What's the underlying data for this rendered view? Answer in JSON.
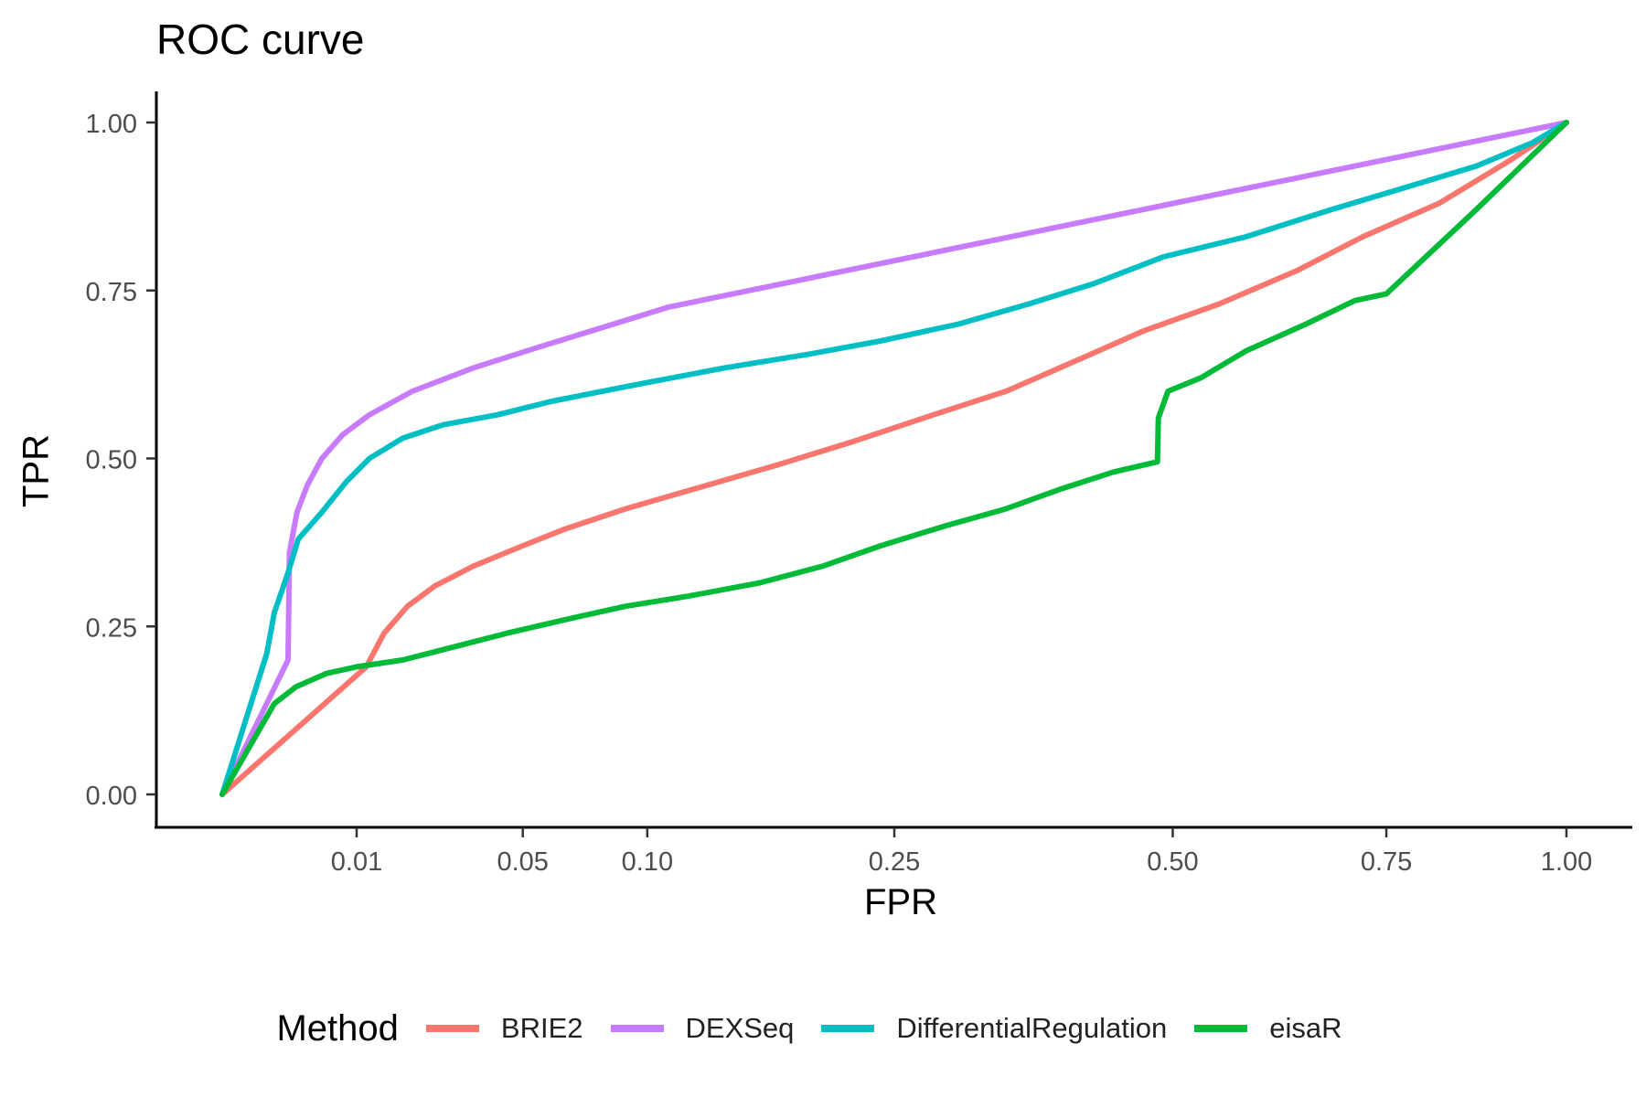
{
  "chart_data": {
    "type": "line",
    "title": "ROC curve",
    "xlabel": "FPR",
    "ylabel": "TPR",
    "x_scale": "sqrt",
    "xlim": [
      0,
      1
    ],
    "ylim": [
      0,
      1
    ],
    "x_ticks": [
      {
        "value": 0.01,
        "label": "0.01"
      },
      {
        "value": 0.05,
        "label": "0.05"
      },
      {
        "value": 0.1,
        "label": "0.10"
      },
      {
        "value": 0.25,
        "label": "0.25"
      },
      {
        "value": 0.5,
        "label": "0.50"
      },
      {
        "value": 0.75,
        "label": "0.75"
      },
      {
        "value": 1.0,
        "label": "1.00"
      }
    ],
    "y_ticks": [
      {
        "value": 0.0,
        "label": "0.00"
      },
      {
        "value": 0.25,
        "label": "0.25"
      },
      {
        "value": 0.5,
        "label": "0.50"
      },
      {
        "value": 0.75,
        "label": "0.75"
      },
      {
        "value": 1.0,
        "label": "1.00"
      }
    ],
    "grid": false,
    "legend_title": "Method",
    "legend_position": "bottom",
    "series": [
      {
        "name": "BRIE2",
        "color": "#F8766D",
        "points": [
          [
            0,
            0
          ],
          [
            0.0115,
            0.19
          ],
          [
            0.0145,
            0.24
          ],
          [
            0.019,
            0.28
          ],
          [
            0.025,
            0.31
          ],
          [
            0.035,
            0.34
          ],
          [
            0.05,
            0.37
          ],
          [
            0.065,
            0.395
          ],
          [
            0.09,
            0.425
          ],
          [
            0.13,
            0.46
          ],
          [
            0.17,
            0.49
          ],
          [
            0.22,
            0.525
          ],
          [
            0.28,
            0.565
          ],
          [
            0.34,
            0.6
          ],
          [
            0.41,
            0.65
          ],
          [
            0.47,
            0.69
          ],
          [
            0.55,
            0.73
          ],
          [
            0.64,
            0.78
          ],
          [
            0.72,
            0.83
          ],
          [
            0.82,
            0.88
          ],
          [
            0.92,
            0.945
          ],
          [
            1,
            1
          ]
        ]
      },
      {
        "name": "DEXSeq",
        "color": "#C77CFF",
        "points": [
          [
            0,
            0
          ],
          [
            0.0024,
            0.2
          ],
          [
            0.0025,
            0.36
          ],
          [
            0.0031,
            0.42
          ],
          [
            0.004,
            0.46
          ],
          [
            0.0055,
            0.5
          ],
          [
            0.008,
            0.535
          ],
          [
            0.012,
            0.565
          ],
          [
            0.02,
            0.6
          ],
          [
            0.035,
            0.635
          ],
          [
            0.055,
            0.665
          ],
          [
            0.08,
            0.695
          ],
          [
            0.11,
            0.725
          ],
          [
            1,
            1
          ]
        ]
      },
      {
        "name": "DifferentialRegulation",
        "color": "#00BFC4",
        "points": [
          [
            0,
            0
          ],
          [
            0.0011,
            0.21
          ],
          [
            0.0015,
            0.27
          ],
          [
            0.0024,
            0.33
          ],
          [
            0.0032,
            0.38
          ],
          [
            0.0055,
            0.42
          ],
          [
            0.0085,
            0.465
          ],
          [
            0.012,
            0.5
          ],
          [
            0.018,
            0.53
          ],
          [
            0.027,
            0.55
          ],
          [
            0.042,
            0.565
          ],
          [
            0.06,
            0.585
          ],
          [
            0.095,
            0.61
          ],
          [
            0.14,
            0.635
          ],
          [
            0.19,
            0.655
          ],
          [
            0.24,
            0.675
          ],
          [
            0.3,
            0.7
          ],
          [
            0.36,
            0.73
          ],
          [
            0.42,
            0.76
          ],
          [
            0.49,
            0.8
          ],
          [
            0.58,
            0.83
          ],
          [
            0.68,
            0.87
          ],
          [
            0.78,
            0.905
          ],
          [
            0.87,
            0.935
          ],
          [
            0.95,
            0.97
          ],
          [
            1,
            1
          ]
        ]
      },
      {
        "name": "eisaR",
        "color": "#00BA38",
        "points": [
          [
            0,
            0
          ],
          [
            0.0015,
            0.135
          ],
          [
            0.003,
            0.16
          ],
          [
            0.006,
            0.18
          ],
          [
            0.01,
            0.19
          ],
          [
            0.018,
            0.2
          ],
          [
            0.03,
            0.22
          ],
          [
            0.045,
            0.24
          ],
          [
            0.065,
            0.26
          ],
          [
            0.09,
            0.28
          ],
          [
            0.12,
            0.295
          ],
          [
            0.16,
            0.315
          ],
          [
            0.2,
            0.34
          ],
          [
            0.24,
            0.37
          ],
          [
            0.29,
            0.4
          ],
          [
            0.34,
            0.425
          ],
          [
            0.39,
            0.455
          ],
          [
            0.44,
            0.48
          ],
          [
            0.484,
            0.495
          ],
          [
            0.485,
            0.56
          ],
          [
            0.495,
            0.6
          ],
          [
            0.53,
            0.62
          ],
          [
            0.58,
            0.66
          ],
          [
            0.65,
            0.7
          ],
          [
            0.71,
            0.735
          ],
          [
            0.75,
            0.745
          ],
          [
            0.87,
            0.87
          ],
          [
            1,
            1
          ]
        ]
      }
    ]
  }
}
